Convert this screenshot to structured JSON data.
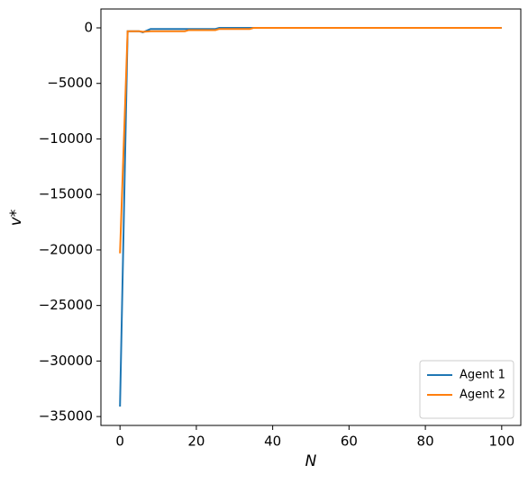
{
  "chart_data": {
    "type": "line",
    "xlabel": "N",
    "ylabel": "v*",
    "x": [
      0,
      2,
      5,
      6,
      8,
      17,
      18,
      25,
      26,
      34,
      35,
      100
    ],
    "series": [
      {
        "name": "Agent 1",
        "color": "#1f77b4",
        "values": [
          -34100,
          -300,
          -300,
          -400,
          -100,
          -100,
          -100,
          -100,
          0,
          0,
          0,
          0
        ]
      },
      {
        "name": "Agent 2",
        "color": "#ff7f0e",
        "values": [
          -20300,
          -300,
          -300,
          -350,
          -300,
          -300,
          -200,
          -200,
          -100,
          -100,
          0,
          0
        ]
      }
    ],
    "xlim": [
      -5,
      105
    ],
    "ylim": [
      -35800,
      1700
    ],
    "xticks": [
      0,
      20,
      40,
      60,
      80,
      100
    ],
    "yticks": [
      0,
      {
        "value": -5000,
        "label": "−5000"
      },
      {
        "value": -10000,
        "label": "−10000"
      },
      {
        "value": -15000,
        "label": "−15000"
      },
      {
        "value": -20000,
        "label": "−20000"
      },
      {
        "value": -25000,
        "label": "−25000"
      },
      {
        "value": -30000,
        "label": "−30000"
      },
      {
        "value": -35000,
        "label": "−35000"
      }
    ],
    "legend": "lower right"
  }
}
